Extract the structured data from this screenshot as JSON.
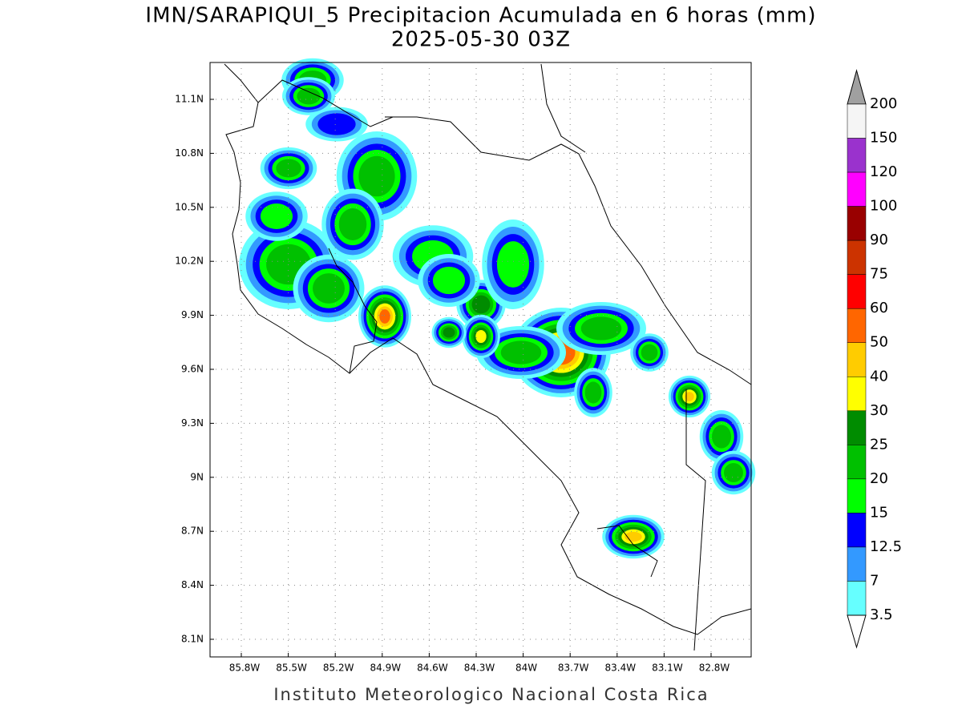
{
  "title": "IMN/SARAPIQUI_5 Precipitacion Acumulada en 6 horas (mm)",
  "subtitle": "2025-05-30 03Z",
  "map": {
    "lat_ticks": [
      "11.1N",
      "10.8N",
      "10.5N",
      "10.2N",
      "9.9N",
      "9.6N",
      "9.3N",
      "9N",
      "8.7N",
      "8.4N",
      "8.1N"
    ],
    "lon_ticks": [
      "85.8W",
      "85.5W",
      "85.2W",
      "84.9W",
      "84.6W",
      "84.3W",
      "84W",
      "83.7W",
      "83.4W",
      "83.1W",
      "82.8W"
    ]
  },
  "colorbar": {
    "levels": [
      200,
      150,
      120,
      100,
      90,
      75,
      60,
      50,
      40,
      30,
      25,
      20,
      15,
      12.5,
      7,
      3.5
    ],
    "colors": [
      "#a0a0a0",
      "#f5f5f5",
      "#9a32cd",
      "#ff00ff",
      "#990000",
      "#cc3300",
      "#ff0000",
      "#ff6600",
      "#ffcc00",
      "#ffff00",
      "#008c00",
      "#00c000",
      "#00ff00",
      "#0000ff",
      "#3399ff",
      "#66ffff",
      "#ffffff"
    ]
  },
  "footer": "Instituto Meteorologico Nacional Costa Rica"
}
